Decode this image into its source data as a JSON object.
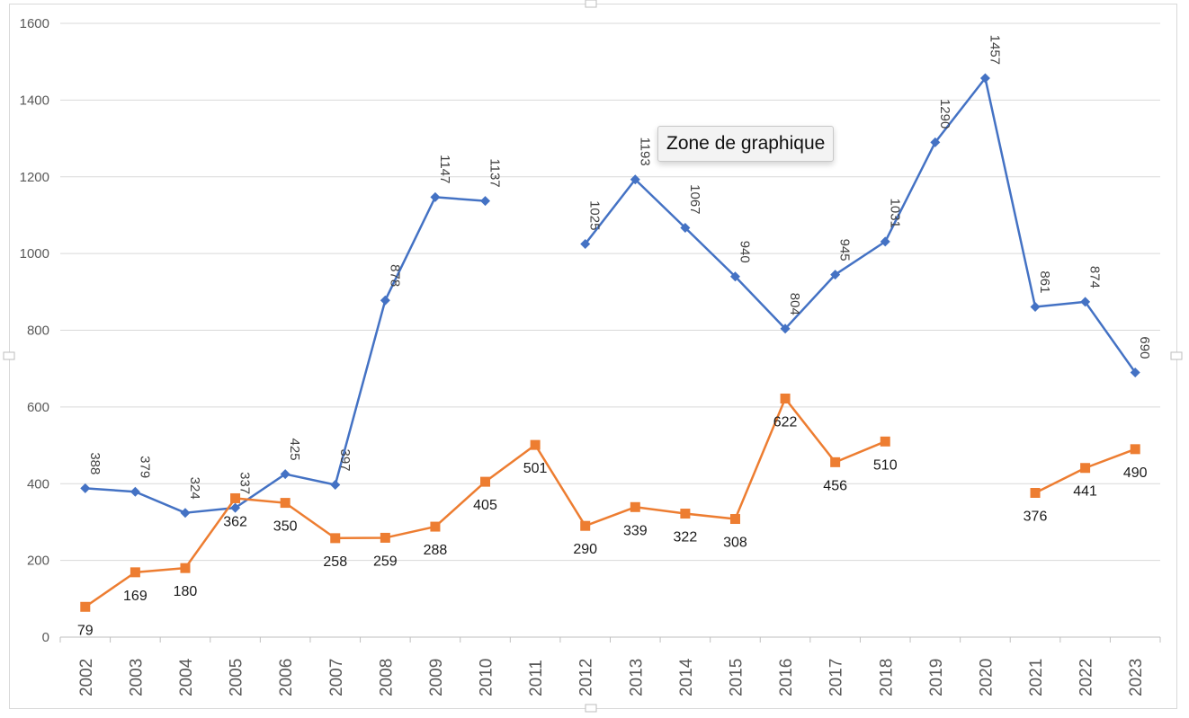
{
  "chart_data": {
    "type": "line",
    "categories": [
      "2002",
      "2003",
      "2004",
      "2005",
      "2006",
      "2007",
      "2008",
      "2009",
      "2010",
      "2011",
      "2012",
      "2013",
      "2014",
      "2015",
      "2016",
      "2017",
      "2018",
      "2019",
      "2020",
      "2021",
      "2022",
      "2023"
    ],
    "ylim": [
      0,
      1600
    ],
    "yticks": [
      0,
      200,
      400,
      600,
      800,
      1000,
      1200,
      1400,
      1600
    ],
    "grid": true,
    "legend": "none",
    "series": [
      {
        "color": "#4472C4",
        "marker": "diamond",
        "label_rotation": "vertical",
        "values": [
          388,
          379,
          324,
          337,
          425,
          397,
          878,
          1147,
          1137,
          null,
          1025,
          1193,
          1067,
          940,
          804,
          945,
          1031,
          1290,
          1457,
          861,
          874,
          690
        ]
      },
      {
        "color": "#ED7D31",
        "marker": "square",
        "label_rotation": "horizontal",
        "values": [
          79,
          169,
          180,
          362,
          350,
          258,
          259,
          288,
          405,
          501,
          290,
          339,
          322,
          308,
          622,
          456,
          510,
          null,
          null,
          376,
          441,
          490
        ]
      }
    ]
  },
  "tooltip": {
    "text": "Zone de graphique"
  }
}
